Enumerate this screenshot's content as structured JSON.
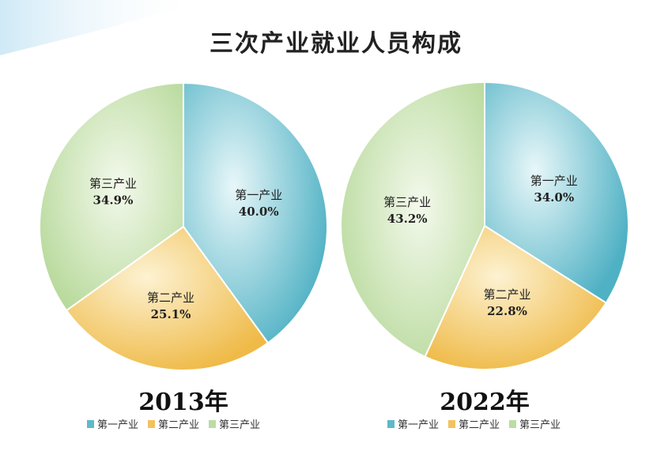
{
  "title": "三次产业就业人员构成",
  "colors": {
    "primary": "#5fb9c9",
    "secondary": "#f2c25d",
    "tertiary": "#bcdca3"
  },
  "chart_data": [
    {
      "type": "pie",
      "title": "2013年",
      "slices": [
        {
          "label": "第一产业",
          "value": 40.0,
          "display": "40.0%"
        },
        {
          "label": "第二产业",
          "value": 25.1,
          "display": "25.1%"
        },
        {
          "label": "第三产业",
          "value": 34.9,
          "display": "34.9%"
        }
      ],
      "legend": [
        "第一产业",
        "第二产业",
        "第三产业"
      ]
    },
    {
      "type": "pie",
      "title": "2022年",
      "slices": [
        {
          "label": "第一产业",
          "value": 34.0,
          "display": "34.0%"
        },
        {
          "label": "第二产业",
          "value": 22.8,
          "display": "22.8%"
        },
        {
          "label": "第三产业",
          "value": 43.2,
          "display": "43.2%"
        }
      ],
      "legend": [
        "第一产业",
        "第二产业",
        "第三产业"
      ]
    }
  ]
}
